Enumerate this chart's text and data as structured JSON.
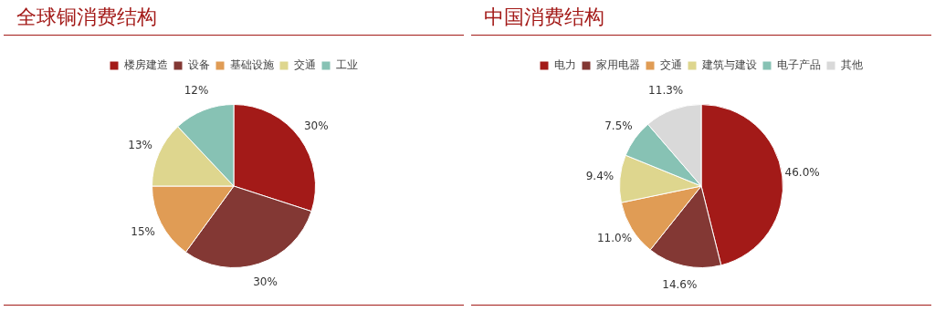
{
  "chart_data": [
    {
      "type": "pie",
      "title": "全球铜消费结构",
      "categories": [
        "楼房建造",
        "设备",
        "基础设施",
        "交通",
        "工业"
      ],
      "values": [
        30,
        30,
        15,
        13,
        12
      ],
      "colors": [
        "#a31a18",
        "#833834",
        "#e09c55",
        "#ded68e",
        "#87c2b4"
      ],
      "value_labels": [
        "30%",
        "30%",
        "15%",
        "13%",
        "12%"
      ],
      "legend": "top"
    },
    {
      "type": "pie",
      "title": "中国消费结构",
      "categories": [
        "电力",
        "家用电器",
        "交通",
        "建筑与建设",
        "电子产品",
        "其他"
      ],
      "values": [
        46.0,
        14.6,
        11.0,
        9.4,
        7.5,
        11.3
      ],
      "colors": [
        "#a31a18",
        "#833834",
        "#e09c55",
        "#ded68e",
        "#87c2b4",
        "#d9d9d9"
      ],
      "value_labels": [
        "46.0%",
        "14.6%",
        "11.0%",
        "9.4%",
        "7.5%",
        "11.3%"
      ],
      "legend": "top"
    }
  ]
}
